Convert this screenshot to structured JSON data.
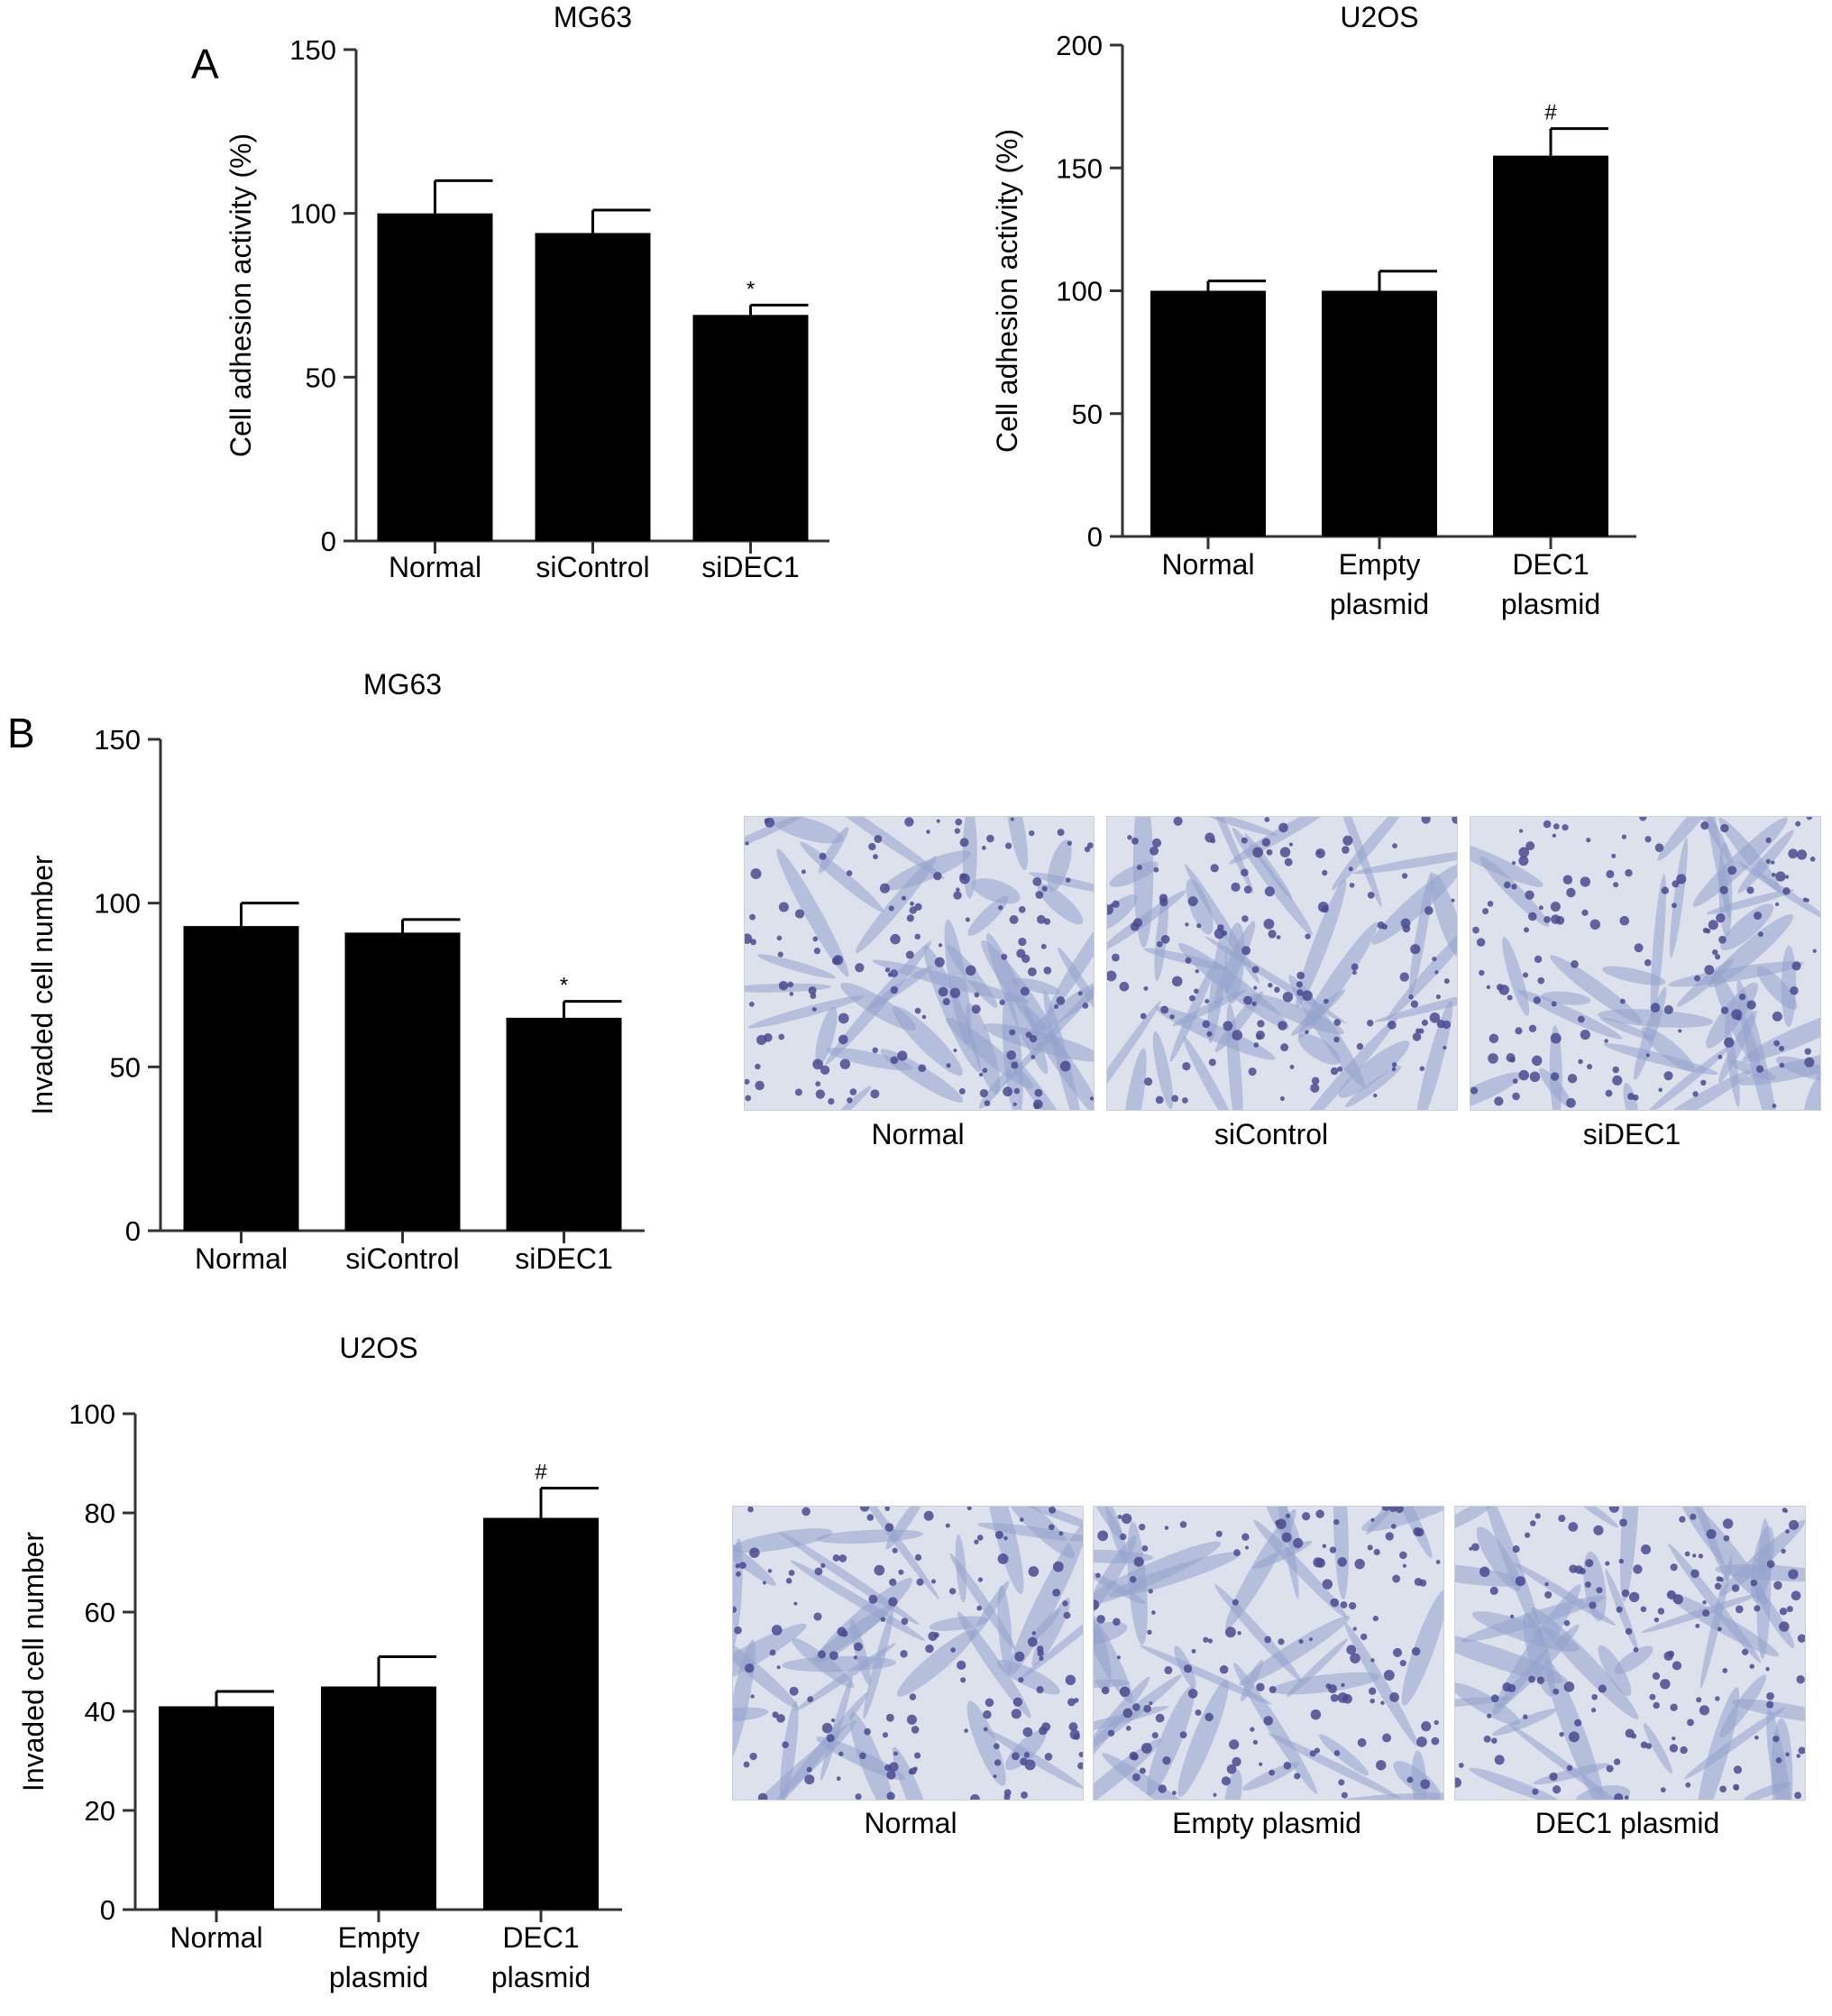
{
  "panels": {
    "a": "A",
    "b": "B"
  },
  "chart_data": [
    {
      "type": "bar",
      "title": "MG63",
      "ylabel": "Cell adhesion activity (%)",
      "categories": [
        [
          "Normal"
        ],
        [
          "siControl"
        ],
        [
          "siDEC1"
        ]
      ],
      "values": [
        100,
        94,
        69
      ],
      "errors": [
        10,
        7,
        3
      ],
      "annotations": [
        "",
        "",
        "*"
      ],
      "ylim": [
        0,
        150
      ],
      "yticks": [
        0,
        50,
        100,
        150
      ]
    },
    {
      "type": "bar",
      "title": "U2OS",
      "ylabel": "Cell adhesion activity (%)",
      "categories": [
        [
          "Normal"
        ],
        [
          "Empty",
          "plasmid"
        ],
        [
          "DEC1",
          "plasmid"
        ]
      ],
      "values": [
        100,
        100,
        155
      ],
      "errors": [
        4,
        8,
        11
      ],
      "annotations": [
        "",
        "",
        "#"
      ],
      "ylim": [
        0,
        200
      ],
      "yticks": [
        0,
        50,
        100,
        150,
        200
      ]
    },
    {
      "type": "bar",
      "title": "MG63",
      "ylabel": "Invaded cell number",
      "categories": [
        [
          "Normal"
        ],
        [
          "siControl"
        ],
        [
          "siDEC1"
        ]
      ],
      "values": [
        93,
        91,
        65
      ],
      "errors": [
        7,
        4,
        5
      ],
      "annotations": [
        "",
        "",
        "*"
      ],
      "ylim": [
        0,
        150
      ],
      "yticks": [
        0,
        50,
        100,
        150
      ]
    },
    {
      "type": "bar",
      "title": "U2OS",
      "ylabel": "Invaded cell number",
      "categories": [
        [
          "Normal"
        ],
        [
          "Empty",
          "plasmid"
        ],
        [
          "DEC1",
          "plasmid"
        ]
      ],
      "values": [
        41,
        45,
        79
      ],
      "errors": [
        3,
        6,
        6
      ],
      "annotations": [
        "",
        "",
        "#"
      ],
      "ylim": [
        0,
        100
      ],
      "yticks": [
        0,
        20,
        40,
        60,
        80,
        100
      ]
    }
  ],
  "micrographs": {
    "mg63": [
      "Normal",
      "siControl",
      "siDEC1"
    ],
    "u2os": [
      "Normal",
      "Empty plasmid",
      "DEC1 plasmid"
    ]
  },
  "colors": {
    "bar": "#000000",
    "axis": "#333333",
    "micro_bg": "#dde1ec",
    "stain": "#4a4a90",
    "cell": "#93a3cc"
  }
}
